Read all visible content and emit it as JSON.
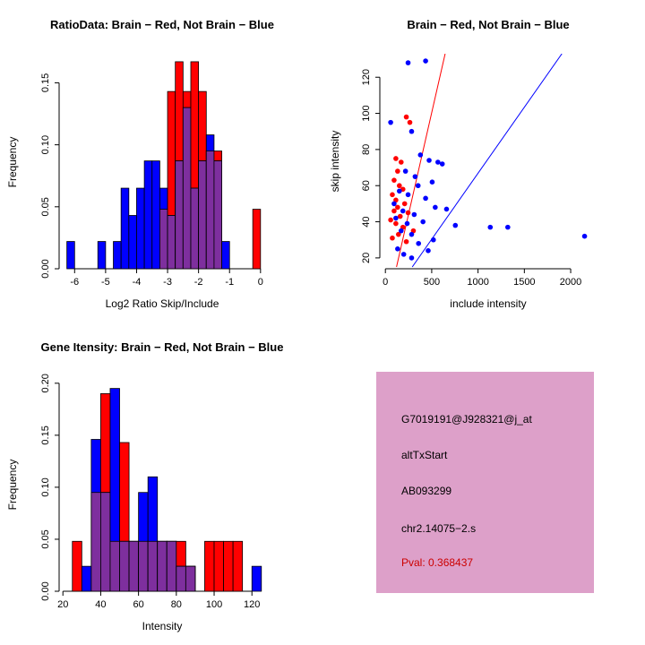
{
  "colors": {
    "red": "#FF0000",
    "blue": "#0000FF",
    "overlap": "#7E2F9E",
    "axis": "#000000",
    "info_bg": "#DDA0C9",
    "pval": "#CC0000"
  },
  "chart_data": [
    {
      "id": "ratio_hist",
      "type": "bar",
      "subtype": "overlaid_histograms",
      "title": "RatioData: Brain − Red, Not Brain − Blue",
      "xlabel": "Log2 Ratio Skip/Include",
      "ylabel": "Frequency",
      "legend": {
        "red": "Brain",
        "blue": "Not Brain"
      },
      "bin_width": 0.25,
      "xlim": [
        -6.5,
        0.15
      ],
      "ylim": [
        0,
        0.172
      ],
      "xticks": [
        -6,
        -5,
        -4,
        -3,
        -2,
        -1,
        0
      ],
      "xtick_labels": [
        "-6",
        "-5",
        "-4",
        "-3",
        "-2",
        "-1",
        "0"
      ],
      "yticks": [
        0,
        0.05,
        0.1,
        0.15
      ],
      "ytick_labels": [
        "0.00",
        "0.05",
        "0.10",
        "0.15"
      ],
      "bins": [
        {
          "x": -6.25,
          "red": 0,
          "blue": 0.022
        },
        {
          "x": -5.25,
          "red": 0,
          "blue": 0.022
        },
        {
          "x": -4.75,
          "red": 0,
          "blue": 0.022
        },
        {
          "x": -4.5,
          "red": 0,
          "blue": 0.065
        },
        {
          "x": -4.25,
          "red": 0,
          "blue": 0.043
        },
        {
          "x": -4.0,
          "red": 0,
          "blue": 0.065
        },
        {
          "x": -3.75,
          "red": 0,
          "blue": 0.087
        },
        {
          "x": -3.5,
          "red": 0,
          "blue": 0.087
        },
        {
          "x": -3.25,
          "red": 0.048,
          "blue": 0.065
        },
        {
          "x": -3.0,
          "red": 0.143,
          "blue": 0.043
        },
        {
          "x": -2.75,
          "red": 0.167,
          "blue": 0.087
        },
        {
          "x": -2.5,
          "red": 0.143,
          "blue": 0.13
        },
        {
          "x": -2.25,
          "red": 0.167,
          "blue": 0.065
        },
        {
          "x": -2.0,
          "red": 0.143,
          "blue": 0.087
        },
        {
          "x": -1.75,
          "red": 0.095,
          "blue": 0.108
        },
        {
          "x": -1.5,
          "red": 0.095,
          "blue": 0.087
        },
        {
          "x": -1.25,
          "red": 0,
          "blue": 0.022
        },
        {
          "x": -0.25,
          "red": 0.048,
          "blue": 0
        }
      ]
    },
    {
      "id": "intensity_scatter",
      "type": "scatter",
      "title": "Brain − Red, Not Brain − Blue",
      "xlabel": "include intensity",
      "ylabel": "skip intensity",
      "xlim": [
        -60,
        2280
      ],
      "ylim": [
        14,
        133
      ],
      "xticks": [
        0,
        500,
        1000,
        1500,
        2000
      ],
      "xtick_labels": [
        "0",
        "500",
        "1000",
        "1500",
        "2000"
      ],
      "yticks": [
        20,
        40,
        60,
        80,
        100,
        120
      ],
      "ytick_labels": [
        "20",
        "40",
        "60",
        "80",
        "100",
        "120"
      ],
      "series": [
        {
          "name": "Brain",
          "color_key": "red",
          "fit_line": [
            [
              120,
              15
            ],
            [
              645,
              133
            ]
          ],
          "points": [
            [
              226,
              98
            ],
            [
              264,
              95
            ],
            [
              113,
              75
            ],
            [
              170,
              73
            ],
            [
              132,
              68
            ],
            [
              94,
              63
            ],
            [
              151,
              60
            ],
            [
              189,
              58
            ],
            [
              75,
              55
            ],
            [
              113,
              52
            ],
            [
              208,
              50
            ],
            [
              132,
              48
            ],
            [
              94,
              46
            ],
            [
              245,
              45
            ],
            [
              160,
              43
            ],
            [
              57,
              41
            ],
            [
              113,
              39
            ],
            [
              189,
              37
            ],
            [
              302,
              35
            ],
            [
              141,
              33
            ],
            [
              75,
              31
            ],
            [
              226,
              29
            ]
          ]
        },
        {
          "name": "Not Brain",
          "color_key": "blue",
          "fit_line": [
            [
              290,
              15
            ],
            [
              1905,
              133
            ]
          ],
          "points": [
            [
              434,
              129
            ],
            [
              245,
              128
            ],
            [
              57,
              95
            ],
            [
              283,
              90
            ],
            [
              378,
              77
            ],
            [
              472,
              74
            ],
            [
              567,
              73
            ],
            [
              614,
              72
            ],
            [
              217,
              68
            ],
            [
              321,
              65
            ],
            [
              505,
              62
            ],
            [
              353,
              60
            ],
            [
              151,
              57
            ],
            [
              245,
              55
            ],
            [
              434,
              53
            ],
            [
              94,
              50
            ],
            [
              538,
              48
            ],
            [
              660,
              47
            ],
            [
              189,
              46
            ],
            [
              311,
              44
            ],
            [
              113,
              42
            ],
            [
              406,
              40
            ],
            [
              235,
              39
            ],
            [
              755,
              38
            ],
            [
              1132,
              37
            ],
            [
              1321,
              37
            ],
            [
              2150,
              32
            ],
            [
              170,
              35
            ],
            [
              283,
              33
            ],
            [
              518,
              30
            ],
            [
              358,
              28
            ],
            [
              132,
              25
            ],
            [
              462,
              24
            ],
            [
              198,
              22
            ],
            [
              283,
              20
            ]
          ]
        }
      ]
    },
    {
      "id": "gene_hist",
      "type": "bar",
      "subtype": "overlaid_histograms",
      "title": "Gene Itensity: Brain − Red, Not Brain − Blue",
      "xlabel": "Intensity",
      "ylabel": "Frequency",
      "legend": {
        "red": "Brain",
        "blue": "Not Brain"
      },
      "bin_width": 5,
      "xlim": [
        18,
        127
      ],
      "ylim": [
        0,
        0.205
      ],
      "xticks": [
        20,
        40,
        60,
        80,
        100,
        120
      ],
      "xtick_labels": [
        "20",
        "40",
        "60",
        "80",
        "100",
        "120"
      ],
      "yticks": [
        0,
        0.05,
        0.1,
        0.15,
        0.2
      ],
      "ytick_labels": [
        "0.00",
        "0.05",
        "0.10",
        "0.15",
        "0.20"
      ],
      "bins": [
        {
          "x": 25,
          "red": 0.048,
          "blue": 0
        },
        {
          "x": 30,
          "red": 0,
          "blue": 0.024
        },
        {
          "x": 35,
          "red": 0.095,
          "blue": 0.146
        },
        {
          "x": 40,
          "red": 0.19,
          "blue": 0.095
        },
        {
          "x": 45,
          "red": 0.048,
          "blue": 0.195
        },
        {
          "x": 50,
          "red": 0.143,
          "blue": 0.048
        },
        {
          "x": 55,
          "red": 0.048,
          "blue": 0.048
        },
        {
          "x": 60,
          "red": 0.048,
          "blue": 0.095
        },
        {
          "x": 65,
          "red": 0.048,
          "blue": 0.11
        },
        {
          "x": 70,
          "red": 0.048,
          "blue": 0.048
        },
        {
          "x": 75,
          "red": 0.048,
          "blue": 0.048
        },
        {
          "x": 80,
          "red": 0.048,
          "blue": 0.024
        },
        {
          "x": 85,
          "red": 0.024,
          "blue": 0.024
        },
        {
          "x": 95,
          "red": 0.048,
          "blue": 0
        },
        {
          "x": 100,
          "red": 0.048,
          "blue": 0
        },
        {
          "x": 105,
          "red": 0.048,
          "blue": 0
        },
        {
          "x": 110,
          "red": 0.048,
          "blue": 0
        },
        {
          "x": 120,
          "red": 0,
          "blue": 0.024
        }
      ]
    }
  ],
  "info_panel": {
    "lines": [
      {
        "text": "G7019191@J928321@j_at",
        "color": "#000000"
      },
      {
        "text": "altTxStart",
        "color": "#000000"
      },
      {
        "text": "AB093299",
        "color": "#000000"
      },
      {
        "text": "chr2.14075−2.s",
        "color": "#000000"
      },
      {
        "text": "Pval: 0.368437",
        "color": "#CC0000"
      }
    ]
  }
}
